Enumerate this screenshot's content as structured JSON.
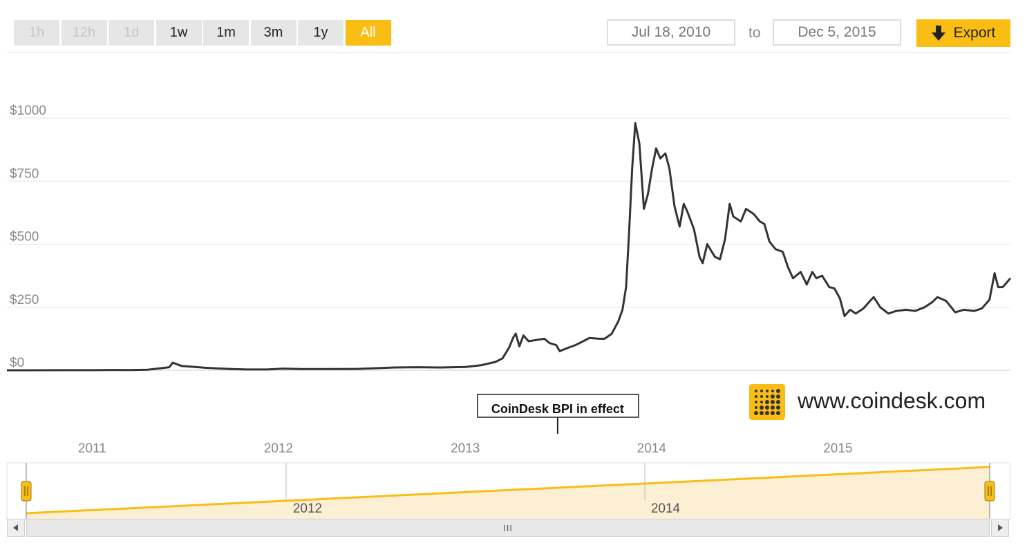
{
  "toolbar": {
    "ranges": [
      {
        "label": "1h",
        "state": "disabled"
      },
      {
        "label": "12h",
        "state": "disabled"
      },
      {
        "label": "1d",
        "state": "disabled"
      },
      {
        "label": "1w",
        "state": "enabled"
      },
      {
        "label": "1m",
        "state": "enabled"
      },
      {
        "label": "3m",
        "state": "enabled"
      },
      {
        "label": "1y",
        "state": "enabled"
      },
      {
        "label": "All",
        "state": "active"
      }
    ],
    "from_date": "Jul 18, 2010",
    "to_label": "to",
    "to_date": "Dec 5, 2015",
    "export_label": "Export"
  },
  "colors": {
    "accent": "#f9bd13",
    "line": "#333333",
    "grid": "#e6e6e6",
    "navigator_fill": "#fcefd4"
  },
  "branding": {
    "site": "www.coindesk.com",
    "logo_icon": "coindesk-dot-grid-icon"
  },
  "annotation": {
    "label": "CoinDesk BPI in effect",
    "date": "2013-07-01"
  },
  "navigator": {
    "year_labels": [
      "2012",
      "2014"
    ],
    "scrollbar_grip": "III",
    "left_arrow_icon": "triangle-left-icon",
    "right_arrow_icon": "triangle-right-icon",
    "handle_icon": "drag-handle-icon"
  },
  "chart_data": {
    "type": "line",
    "title": "",
    "xlabel": "",
    "ylabel": "",
    "x_range": [
      "2010-07-18",
      "2015-12-05"
    ],
    "ylim": [
      0,
      1000
    ],
    "y_ticks": [
      0,
      250,
      500,
      750,
      1000
    ],
    "y_tick_labels": [
      "$0",
      "$250",
      "$500",
      "$750",
      "$1000"
    ],
    "x_ticks": [
      "2011-01-01",
      "2012-01-01",
      "2013-01-01",
      "2014-01-01",
      "2015-01-01"
    ],
    "x_tick_labels": [
      "2011",
      "2012",
      "2013",
      "2014",
      "2015"
    ],
    "grid": true,
    "legend": "none",
    "series": [
      {
        "points": [
          [
            "2010-07-18",
            0.09
          ],
          [
            "2010-09-01",
            0.06
          ],
          [
            "2010-11-01",
            0.25
          ],
          [
            "2011-01-01",
            0.3
          ],
          [
            "2011-02-10",
            1
          ],
          [
            "2011-03-15",
            0.8
          ],
          [
            "2011-04-20",
            2
          ],
          [
            "2011-05-15",
            8
          ],
          [
            "2011-06-01",
            12
          ],
          [
            "2011-06-08",
            30
          ],
          [
            "2011-06-25",
            17
          ],
          [
            "2011-07-15",
            14
          ],
          [
            "2011-08-10",
            10
          ],
          [
            "2011-09-05",
            7
          ],
          [
            "2011-10-01",
            5
          ],
          [
            "2011-11-01",
            3
          ],
          [
            "2011-12-10",
            3
          ],
          [
            "2012-01-10",
            6.5
          ],
          [
            "2012-02-15",
            5
          ],
          [
            "2012-04-01",
            4.9
          ],
          [
            "2012-06-01",
            5.3
          ],
          [
            "2012-08-15",
            11
          ],
          [
            "2012-10-01",
            12
          ],
          [
            "2012-11-15",
            11
          ],
          [
            "2013-01-01",
            13
          ],
          [
            "2013-02-01",
            20
          ],
          [
            "2013-03-01",
            33
          ],
          [
            "2013-03-15",
            47
          ],
          [
            "2013-03-28",
            90
          ],
          [
            "2013-04-05",
            130
          ],
          [
            "2013-04-10",
            145
          ],
          [
            "2013-04-17",
            95
          ],
          [
            "2013-04-25",
            138
          ],
          [
            "2013-05-05",
            115
          ],
          [
            "2013-05-20",
            120
          ],
          [
            "2013-06-05",
            125
          ],
          [
            "2013-06-15",
            108
          ],
          [
            "2013-06-28",
            100
          ],
          [
            "2013-07-05",
            76
          ],
          [
            "2013-07-20",
            88
          ],
          [
            "2013-08-05",
            100
          ],
          [
            "2013-08-20",
            115
          ],
          [
            "2013-09-01",
            128
          ],
          [
            "2013-09-20",
            125
          ],
          [
            "2013-10-01",
            125
          ],
          [
            "2013-10-15",
            145
          ],
          [
            "2013-10-28",
            195
          ],
          [
            "2013-11-05",
            240
          ],
          [
            "2013-11-12",
            330
          ],
          [
            "2013-11-18",
            550
          ],
          [
            "2013-11-24",
            800
          ],
          [
            "2013-11-30",
            980
          ],
          [
            "2013-12-08",
            900
          ],
          [
            "2013-12-17",
            640
          ],
          [
            "2013-12-25",
            700
          ],
          [
            "2014-01-02",
            800
          ],
          [
            "2014-01-10",
            880
          ],
          [
            "2014-01-18",
            840
          ],
          [
            "2014-01-28",
            860
          ],
          [
            "2014-02-05",
            800
          ],
          [
            "2014-02-15",
            650
          ],
          [
            "2014-02-25",
            570
          ],
          [
            "2014-03-05",
            660
          ],
          [
            "2014-03-12",
            630
          ],
          [
            "2014-03-25",
            560
          ],
          [
            "2014-04-05",
            450
          ],
          [
            "2014-04-11",
            425
          ],
          [
            "2014-04-20",
            500
          ],
          [
            "2014-05-05",
            450
          ],
          [
            "2014-05-15",
            440
          ],
          [
            "2014-05-25",
            520
          ],
          [
            "2014-06-03",
            660
          ],
          [
            "2014-06-10",
            610
          ],
          [
            "2014-06-25",
            590
          ],
          [
            "2014-07-05",
            640
          ],
          [
            "2014-07-20",
            620
          ],
          [
            "2014-08-01",
            590
          ],
          [
            "2014-08-10",
            580
          ],
          [
            "2014-08-20",
            510
          ],
          [
            "2014-09-01",
            480
          ],
          [
            "2014-09-15",
            470
          ],
          [
            "2014-09-25",
            410
          ],
          [
            "2014-10-05",
            365
          ],
          [
            "2014-10-20",
            390
          ],
          [
            "2014-11-01",
            340
          ],
          [
            "2014-11-12",
            390
          ],
          [
            "2014-11-20",
            365
          ],
          [
            "2014-12-01",
            375
          ],
          [
            "2014-12-15",
            330
          ],
          [
            "2014-12-25",
            325
          ],
          [
            "2015-01-05",
            285
          ],
          [
            "2015-01-14",
            215
          ],
          [
            "2015-01-25",
            240
          ],
          [
            "2015-02-05",
            225
          ],
          [
            "2015-02-20",
            245
          ],
          [
            "2015-03-05",
            275
          ],
          [
            "2015-03-12",
            290
          ],
          [
            "2015-03-25",
            250
          ],
          [
            "2015-04-10",
            225
          ],
          [
            "2015-04-25",
            235
          ],
          [
            "2015-05-15",
            240
          ],
          [
            "2015-06-01",
            235
          ],
          [
            "2015-06-20",
            250
          ],
          [
            "2015-07-05",
            270
          ],
          [
            "2015-07-15",
            290
          ],
          [
            "2015-08-01",
            275
          ],
          [
            "2015-08-19",
            230
          ],
          [
            "2015-09-05",
            240
          ],
          [
            "2015-09-25",
            235
          ],
          [
            "2015-10-10",
            245
          ],
          [
            "2015-10-25",
            280
          ],
          [
            "2015-11-04",
            385
          ],
          [
            "2015-11-11",
            330
          ],
          [
            "2015-11-20",
            330
          ],
          [
            "2015-12-05",
            365
          ]
        ]
      }
    ]
  }
}
